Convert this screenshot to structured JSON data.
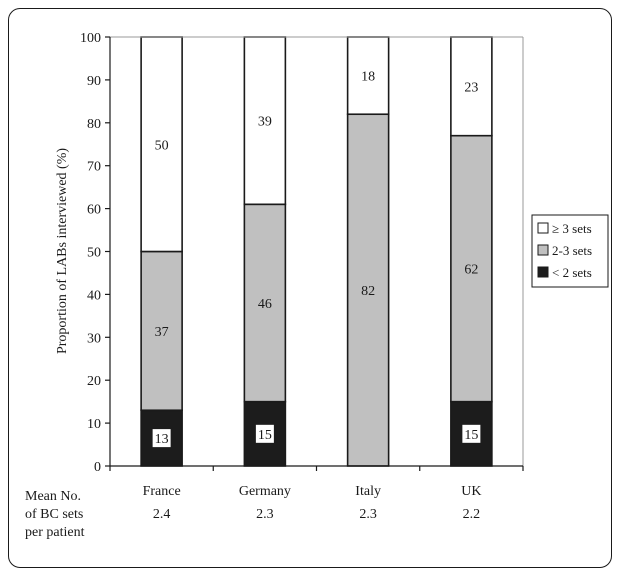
{
  "chart_data": {
    "type": "bar",
    "stacked": true,
    "categories": [
      "France",
      "Germany",
      "Italy",
      "UK"
    ],
    "series": [
      {
        "name": "< 2 sets",
        "values": [
          13,
          15,
          0,
          15
        ],
        "labels": [
          "13",
          "15",
          "",
          "15"
        ],
        "color": "#1c1c1c"
      },
      {
        "name": "2-3 sets",
        "values": [
          37,
          46,
          82,
          62
        ],
        "labels": [
          "37",
          "46",
          "82",
          "62"
        ],
        "color": "#c0c0c0"
      },
      {
        "name": "≥ 3 sets",
        "values": [
          50,
          39,
          18,
          23
        ],
        "labels": [
          "50",
          "39",
          "18",
          "23"
        ],
        "color": "#ffffff"
      }
    ],
    "ylabel": "Proportion of LABs interviewed (%)",
    "ylim": [
      0,
      100
    ],
    "yticks": [
      0,
      10,
      20,
      30,
      40,
      50,
      60,
      70,
      80,
      90,
      100
    ],
    "grid": false,
    "legend_position": "right",
    "legend": [
      "≥ 3 sets",
      "2-3 sets",
      "< 2 sets"
    ],
    "row_label": [
      "Mean No.",
      "of BC sets",
      "per patient"
    ],
    "row_values": [
      "2.4",
      "2.3",
      "2.3",
      "2.2"
    ]
  }
}
